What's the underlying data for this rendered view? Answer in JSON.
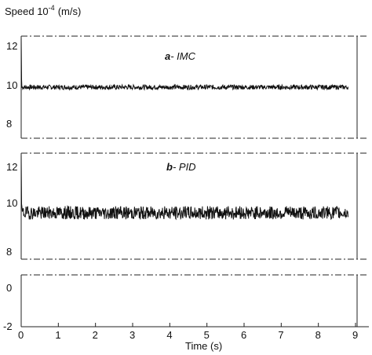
{
  "figure": {
    "ylabel_prefix": "Speed 10",
    "ylabel_exp": "-4",
    "ylabel_suffix": "(m/s)",
    "xlabel": "Time (s)"
  },
  "chart_data": [
    {
      "type": "line",
      "panel": "a",
      "label_letter": "a",
      "label_text": "- IMC",
      "xlim": [
        0,
        9
      ],
      "ylim": [
        7.4,
        12.6
      ],
      "yticks": [
        8,
        10,
        12
      ],
      "series": [
        {
          "mean": 10.0,
          "noise_amplitude": 0.12,
          "initial_peak": 12.5,
          "x_end": 8.8,
          "color": "#111111"
        }
      ]
    },
    {
      "type": "line",
      "panel": "b",
      "label_letter": "b",
      "label_text": "- PID",
      "xlim": [
        0,
        9
      ],
      "ylim": [
        7.8,
        12.6
      ],
      "yticks": [
        8,
        10,
        12
      ],
      "series": [
        {
          "mean": 9.9,
          "noise_amplitude": 0.3,
          "initial_peak": 12.5,
          "x_end": 8.8,
          "color": "#111111"
        }
      ]
    },
    {
      "type": "line",
      "panel": "c",
      "xlim": [
        0,
        9
      ],
      "ylim": [
        -2,
        1.5
      ],
      "yticks": [
        -2,
        0
      ],
      "xticks": [
        0,
        1,
        2,
        3,
        4,
        5,
        6,
        7,
        8,
        9
      ],
      "series": []
    }
  ]
}
